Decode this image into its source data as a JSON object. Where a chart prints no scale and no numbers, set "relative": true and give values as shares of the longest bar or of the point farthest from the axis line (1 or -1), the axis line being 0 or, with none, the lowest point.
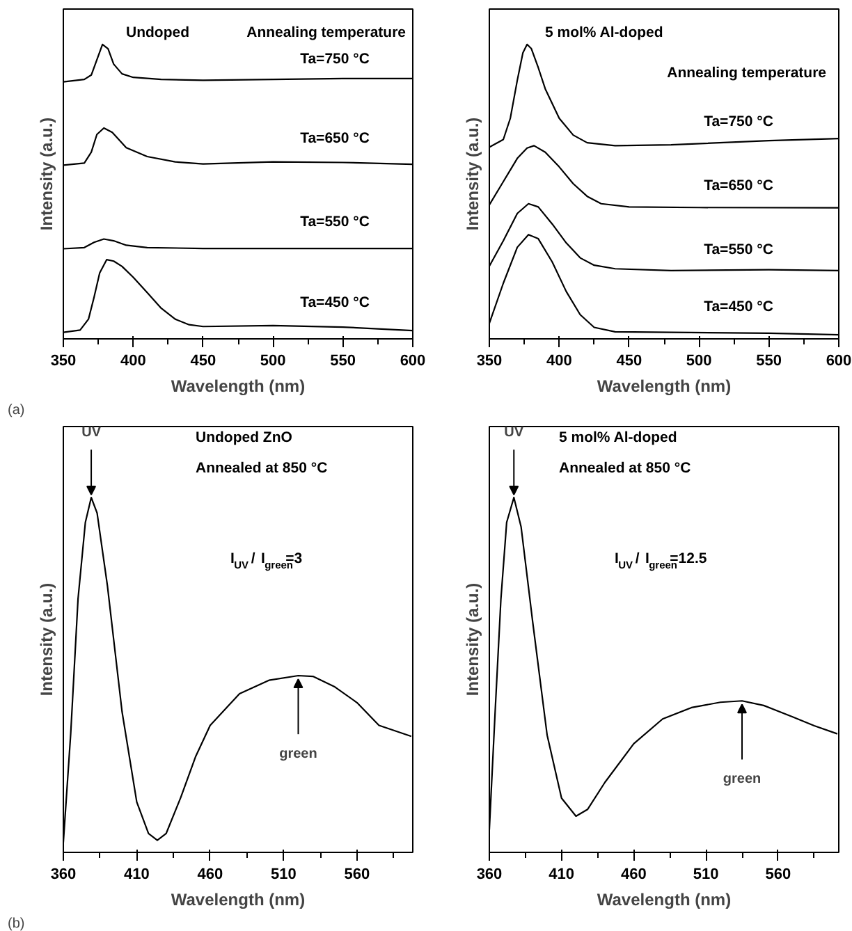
{
  "chart_data": [
    {
      "type": "line",
      "xlabel": "Wavelength (nm)",
      "ylabel": "Intensity (a.u.)",
      "relative": true,
      "tick_labels": "x",
      "xlim": [
        350,
        600
      ],
      "xticks": [
        350,
        400,
        450,
        500,
        550,
        600
      ],
      "annotations": [
        "Undoped",
        "Annealing temperature",
        "(a)",
        "Ta=750 °C",
        "Ta=650 °C",
        "Ta=550 °C",
        "Ta=450 °C"
      ],
      "series": [
        {
          "color": "#000000",
          "x": [
            350,
            365,
            370,
            374,
            378,
            382,
            386,
            392,
            400,
            420,
            450,
            500,
            550,
            600
          ],
          "values": [
            0.873,
            0.881,
            0.896,
            0.948,
            1,
            0.985,
            0.933,
            0.9,
            0.888,
            0.881,
            0.878,
            0.881,
            0.884,
            0.884
          ]
        },
        {
          "color": "#000000",
          "x": [
            350,
            365,
            370,
            374,
            379,
            385,
            395,
            410,
            430,
            450,
            500,
            550,
            600
          ],
          "values": [
            0.59,
            0.597,
            0.634,
            0.694,
            0.716,
            0.701,
            0.649,
            0.619,
            0.601,
            0.594,
            0.601,
            0.599,
            0.593
          ]
        },
        {
          "color": "#000000",
          "x": [
            350,
            365,
            372,
            379,
            386,
            395,
            410,
            450,
            600
          ],
          "values": [
            0.306,
            0.31,
            0.328,
            0.339,
            0.333,
            0.318,
            0.31,
            0.307,
            0.307
          ]
        },
        {
          "color": "#000000",
          "x": [
            350,
            362,
            368,
            372,
            376,
            381,
            386,
            392,
            400,
            410,
            420,
            430,
            440,
            450,
            500,
            550,
            600
          ],
          "values": [
            0.022,
            0.03,
            0.067,
            0.142,
            0.224,
            0.269,
            0.264,
            0.246,
            0.209,
            0.157,
            0.104,
            0.067,
            0.048,
            0.042,
            0.045,
            0.04,
            0.028
          ]
        }
      ]
    },
    {
      "type": "line",
      "xlabel": "Wavelength (nm)",
      "ylabel": "Intensity (a.u.)",
      "relative": true,
      "tick_labels": "x",
      "xlim": [
        350,
        600
      ],
      "xticks": [
        350,
        400,
        450,
        500,
        550,
        600
      ],
      "annotations": [
        "5 mol% Al-doped",
        "Annealing temperature",
        "Ta=750 °C",
        "Ta=650 °C",
        "Ta=550 °C",
        "Ta=450 °C"
      ],
      "series": [
        {
          "color": "#000000",
          "x": [
            350,
            360,
            365,
            370,
            374,
            377,
            380,
            385,
            390,
            400,
            410,
            420,
            440,
            480,
            550,
            600
          ],
          "values": [
            0.651,
            0.677,
            0.749,
            0.878,
            0.971,
            1,
            0.986,
            0.921,
            0.849,
            0.749,
            0.692,
            0.666,
            0.656,
            0.659,
            0.673,
            0.68
          ]
        },
        {
          "color": "#000000",
          "x": [
            350,
            360,
            370,
            377,
            382,
            390,
            400,
            410,
            420,
            430,
            450,
            500,
            600
          ],
          "values": [
            0.455,
            0.534,
            0.613,
            0.648,
            0.656,
            0.634,
            0.584,
            0.527,
            0.484,
            0.459,
            0.448,
            0.446,
            0.445
          ]
        },
        {
          "color": "#000000",
          "x": [
            350,
            360,
            370,
            378,
            385,
            395,
            405,
            415,
            425,
            440,
            480,
            550,
            600
          ],
          "values": [
            0.247,
            0.333,
            0.426,
            0.459,
            0.448,
            0.39,
            0.326,
            0.275,
            0.25,
            0.238,
            0.232,
            0.235,
            0.232
          ]
        },
        {
          "color": "#000000",
          "x": [
            350,
            360,
            370,
            378,
            385,
            395,
            405,
            415,
            425,
            440,
            480,
            550,
            600
          ],
          "values": [
            0.053,
            0.189,
            0.311,
            0.354,
            0.34,
            0.261,
            0.161,
            0.082,
            0.039,
            0.024,
            0.022,
            0.019,
            0.014
          ]
        }
      ]
    },
    {
      "type": "line",
      "xlabel": "Wavelength (nm)",
      "ylabel": "Intensity (a.u.)",
      "relative": true,
      "tick_labels": "x",
      "xlim": [
        360,
        598
      ],
      "xticks": [
        360,
        410,
        460,
        510,
        560
      ],
      "annotations": [
        "Undoped ZnO",
        "Annealed at 850 °C",
        "I$_{UV}$ / I$_{green}$=3",
        "(b)",
        {
          "text": "UV",
          "x": 379,
          "y": 1
        },
        {
          "text": "green",
          "x": 520,
          "y": 0.498
        }
      ],
      "series": [
        {
          "color": "#000000",
          "x": [
            360,
            365,
            370,
            375,
            379,
            383,
            390,
            400,
            410,
            418,
            424,
            430,
            440,
            450,
            460,
            480,
            500,
            520,
            530,
            545,
            560,
            575,
            597
          ],
          "values": [
            0.028,
            0.333,
            0.714,
            0.93,
            1,
            0.956,
            0.752,
            0.396,
            0.142,
            0.053,
            0.034,
            0.053,
            0.155,
            0.269,
            0.358,
            0.447,
            0.485,
            0.498,
            0.496,
            0.466,
            0.422,
            0.358,
            0.327
          ]
        }
      ]
    },
    {
      "type": "line",
      "xlabel": "Wavelength (nm)",
      "ylabel": "Intensity (a.u.)",
      "relative": true,
      "tick_labels": "x",
      "xlim": [
        360,
        602
      ],
      "xticks": [
        360,
        410,
        460,
        510,
        560
      ],
      "annotations": [
        "5 mol% Al-doped",
        "Annealed at 850 °C",
        "I$_{UV}$ / I$_{green}$=12.5",
        {
          "text": "UV",
          "x": 377,
          "y": 1
        },
        {
          "text": "green",
          "x": 535,
          "y": 0.427
        }
      ],
      "series": [
        {
          "color": "#000000",
          "x": [
            360,
            364,
            368,
            372,
            377,
            382,
            390,
            400,
            410,
            420,
            428,
            440,
            460,
            480,
            500,
            520,
            535,
            550,
            570,
            585,
            601
          ],
          "values": [
            0.064,
            0.395,
            0.713,
            0.93,
            1,
            0.917,
            0.65,
            0.331,
            0.153,
            0.102,
            0.121,
            0.197,
            0.306,
            0.376,
            0.408,
            0.423,
            0.427,
            0.414,
            0.382,
            0.357,
            0.334
          ]
        }
      ]
    }
  ]
}
